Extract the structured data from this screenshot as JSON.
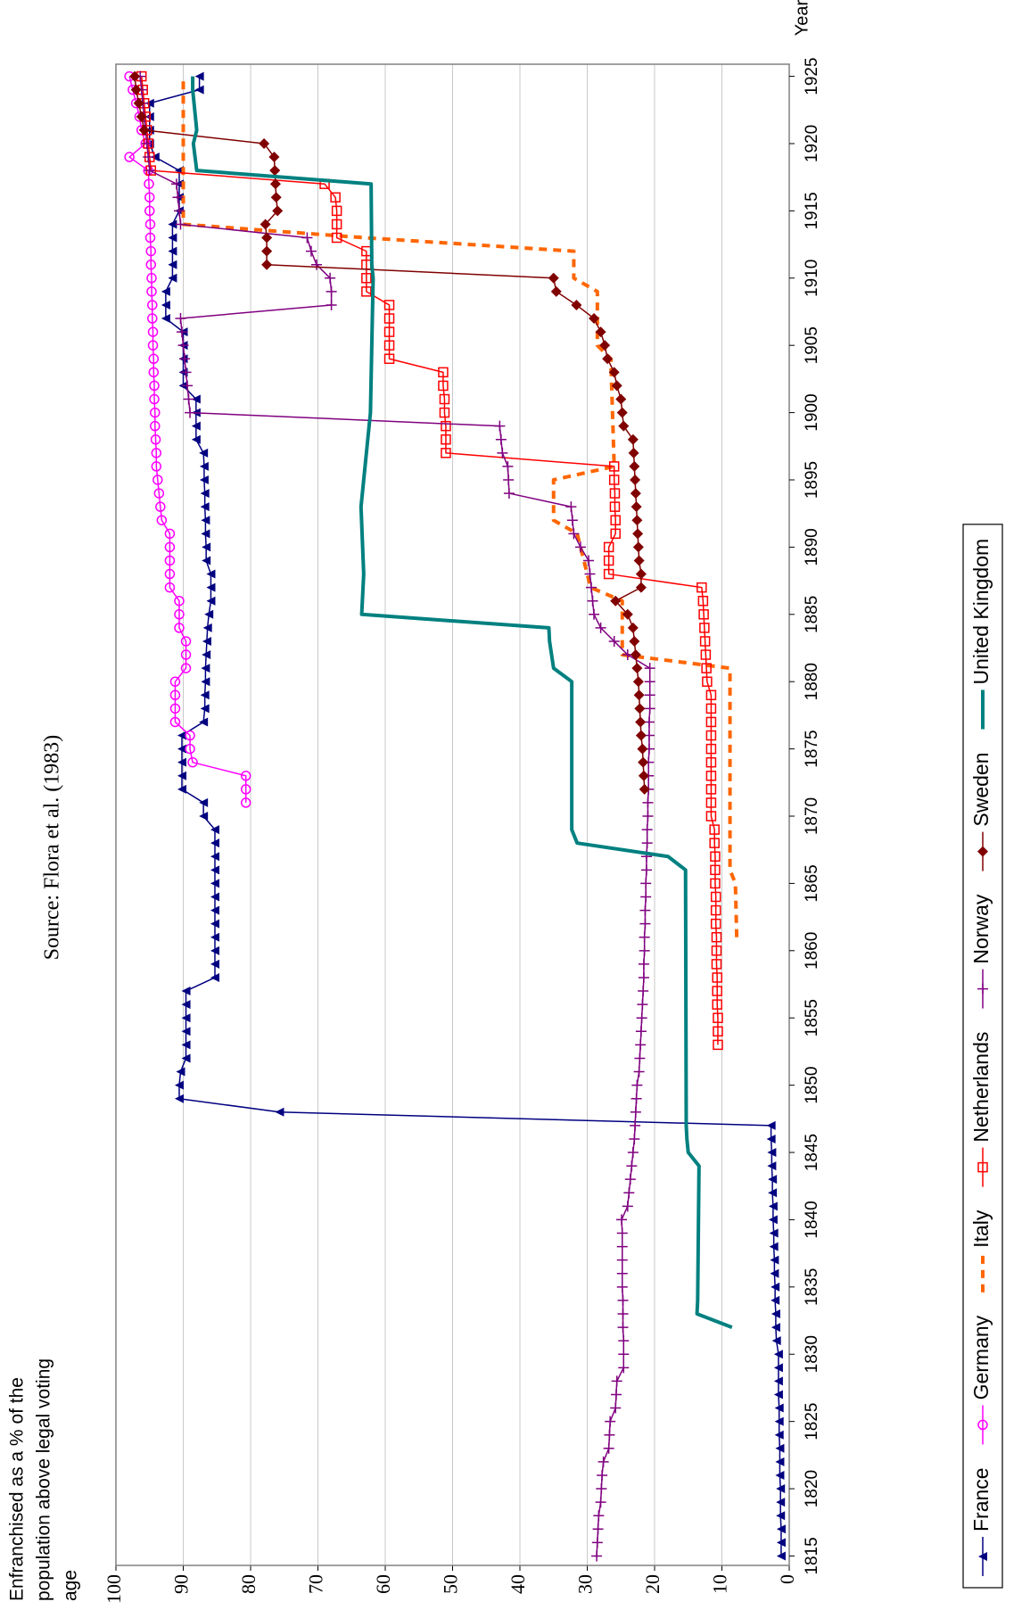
{
  "chart_data": {
    "type": "line",
    "title": "Source:  Flora et al. (1983)",
    "y_label_lines": [
      "Enfranchised  as a % of the",
      "population above legal voting",
      "age"
    ],
    "x_label": "Year",
    "xlim": [
      1814.3,
      1925.9
    ],
    "ylim": [
      0,
      100
    ],
    "xticks": [
      1815,
      1820,
      1825,
      1830,
      1835,
      1840,
      1845,
      1850,
      1855,
      1860,
      1865,
      1870,
      1875,
      1880,
      1885,
      1890,
      1895,
      1900,
      1905,
      1910,
      1915,
      1920,
      1925
    ],
    "yticks": [
      0,
      10,
      20,
      30,
      40,
      50,
      60,
      70,
      80,
      90,
      100
    ],
    "grid": true,
    "series": [
      {
        "name": "France",
        "color": "#000080",
        "marker": "triangle",
        "dashed": false,
        "width": 1.5,
        "x": [
          1815,
          1816,
          1817,
          1818,
          1819,
          1820,
          1821,
          1822,
          1823,
          1824,
          1825,
          1826,
          1827,
          1828,
          1829,
          1830,
          1831,
          1832,
          1833,
          1834,
          1835,
          1836,
          1837,
          1838,
          1839,
          1840,
          1841,
          1842,
          1843,
          1844,
          1845,
          1846,
          1847,
          1848,
          1849,
          1850,
          1851,
          1852,
          1853,
          1854,
          1855,
          1856,
          1857,
          1858,
          1859,
          1860,
          1861,
          1862,
          1863,
          1864,
          1865,
          1866,
          1867,
          1868,
          1869,
          1870,
          1871,
          1872,
          1873,
          1874,
          1875,
          1876,
          1877,
          1878,
          1879,
          1880,
          1881,
          1882,
          1883,
          1884,
          1885,
          1886,
          1887,
          1888,
          1889,
          1890,
          1891,
          1892,
          1893,
          1894,
          1895,
          1896,
          1897,
          1898,
          1899,
          1900,
          1901,
          1902,
          1903,
          1904,
          1905,
          1906,
          1907,
          1908,
          1909,
          1910,
          1911,
          1912,
          1913,
          1914,
          1915,
          1916,
          1917,
          1918,
          1919,
          1920,
          1921,
          1922,
          1923,
          1924,
          1925
        ],
        "values": [
          1.2,
          1.2,
          1.2,
          1.3,
          1.3,
          1.3,
          1.4,
          1.4,
          1.4,
          1.5,
          1.5,
          1.5,
          1.6,
          1.6,
          1.6,
          1.6,
          1.9,
          2.0,
          2.0,
          2.1,
          2.1,
          2.2,
          2.2,
          2.3,
          2.3,
          2.4,
          2.4,
          2.5,
          2.5,
          2.6,
          2.6,
          2.7,
          2.7,
          75.7,
          90.6,
          90.6,
          90.4,
          89.6,
          89.6,
          89.6,
          89.6,
          89.6,
          89.6,
          85.3,
          85.3,
          85.3,
          85.3,
          85.3,
          85.3,
          85.3,
          85.3,
          85.3,
          85.3,
          85.3,
          85.3,
          87.0,
          87.0,
          90.2,
          90.2,
          90.2,
          90.2,
          90.2,
          87.0,
          86.8,
          86.8,
          86.7,
          86.7,
          86.6,
          86.5,
          86.4,
          86.2,
          85.9,
          85.9,
          85.9,
          86.6,
          86.6,
          86.7,
          86.7,
          86.8,
          86.8,
          86.9,
          86.9,
          87.0,
          88.1,
          88.1,
          88.1,
          88.1,
          90.0,
          90.0,
          90.0,
          90.0,
          90.0,
          92.6,
          92.6,
          92.6,
          91.6,
          91.6,
          91.6,
          91.6,
          91.6,
          90.6,
          90.6,
          90.6,
          90.6,
          94.2,
          95.0,
          95.0,
          95.0,
          95.0,
          87.6,
          87.6
        ]
      },
      {
        "name": "Germany",
        "color": "#ff00ff",
        "marker": "circle",
        "dashed": false,
        "width": 1.5,
        "x": [
          1871,
          1872,
          1873,
          1874,
          1875,
          1876,
          1877,
          1878,
          1879,
          1880,
          1881,
          1882,
          1883,
          1884,
          1885,
          1886,
          1887,
          1888,
          1889,
          1890,
          1891,
          1892,
          1893,
          1894,
          1895,
          1896,
          1897,
          1898,
          1899,
          1900,
          1901,
          1902,
          1903,
          1904,
          1905,
          1906,
          1907,
          1908,
          1909,
          1910,
          1911,
          1912,
          1913,
          1914,
          1915,
          1916,
          1917,
          1918,
          1919,
          1920,
          1921,
          1922,
          1923,
          1924,
          1925
        ],
        "values": [
          80.7,
          80.7,
          80.7,
          88.6,
          89.0,
          89.0,
          91.2,
          91.2,
          91.2,
          91.2,
          89.6,
          89.6,
          89.6,
          90.6,
          90.6,
          90.6,
          92.0,
          92.0,
          92.0,
          92.0,
          92.0,
          93.2,
          93.4,
          93.6,
          93.8,
          94.0,
          94.0,
          94.1,
          94.2,
          94.2,
          94.3,
          94.3,
          94.4,
          94.4,
          94.5,
          94.5,
          94.6,
          94.6,
          94.7,
          94.7,
          94.8,
          94.8,
          94.9,
          94.9,
          95.0,
          95.0,
          95.1,
          95.2,
          98.0,
          95.6,
          96.2,
          96.5,
          97.0,
          97.5,
          98.0
        ]
      },
      {
        "name": "Italy",
        "color": "#ff6600",
        "marker": "none",
        "dashed": true,
        "width": 4,
        "x": [
          1861,
          1865,
          1866,
          1881,
          1882,
          1886,
          1887,
          1891,
          1892,
          1895,
          1896,
          1904,
          1905,
          1909,
          1910,
          1912,
          1913,
          1914,
          1925
        ],
        "values": [
          7.8,
          8.0,
          8.8,
          8.8,
          24.8,
          24.8,
          29.5,
          31.5,
          35.0,
          35.0,
          26.0,
          26.5,
          28.5,
          28.5,
          32.0,
          32.0,
          63.0,
          90.0,
          90.0
        ]
      },
      {
        "name": "Netherlands",
        "color": "#ff0000",
        "marker": "square",
        "dashed": false,
        "width": 1.5,
        "x": [
          1853,
          1854,
          1855,
          1856,
          1857,
          1858,
          1859,
          1860,
          1861,
          1862,
          1863,
          1864,
          1865,
          1866,
          1867,
          1868,
          1869,
          1870,
          1871,
          1872,
          1873,
          1874,
          1875,
          1876,
          1877,
          1878,
          1879,
          1880,
          1881,
          1882,
          1883,
          1884,
          1885,
          1886,
          1887,
          1888,
          1889,
          1890,
          1891,
          1892,
          1893,
          1894,
          1895,
          1896,
          1897,
          1898,
          1899,
          1900,
          1901,
          1902,
          1903,
          1904,
          1905,
          1906,
          1907,
          1908,
          1909,
          1910,
          1911,
          1912,
          1913,
          1914,
          1915,
          1916,
          1917,
          1918,
          1919,
          1920,
          1921,
          1922,
          1923,
          1924,
          1925
        ],
        "values": [
          10.6,
          10.6,
          10.6,
          10.7,
          10.7,
          10.7,
          10.8,
          10.8,
          10.8,
          10.9,
          10.9,
          10.9,
          11.0,
          11.0,
          11.0,
          11.1,
          11.1,
          11.6,
          11.6,
          11.6,
          11.6,
          11.6,
          11.6,
          11.6,
          11.6,
          11.6,
          11.6,
          12.2,
          12.3,
          12.4,
          12.5,
          12.6,
          12.7,
          12.8,
          13.0,
          26.8,
          26.8,
          26.8,
          25.8,
          25.8,
          25.9,
          25.9,
          26.0,
          26.0,
          51.0,
          51.0,
          51.0,
          51.2,
          51.2,
          51.4,
          51.4,
          59.4,
          59.4,
          59.4,
          59.4,
          59.4,
          62.8,
          62.8,
          62.8,
          62.8,
          67.2,
          67.2,
          67.2,
          67.4,
          69.0,
          94.8,
          95.0,
          95.2,
          95.4,
          95.6,
          95.8,
          96.0,
          96.2
        ]
      },
      {
        "name": "Norway",
        "color": "#800080",
        "marker": "plus",
        "dashed": false,
        "width": 1.5,
        "x": [
          1815,
          1816,
          1817,
          1818,
          1819,
          1820,
          1821,
          1822,
          1823,
          1824,
          1825,
          1826,
          1827,
          1828,
          1829,
          1830,
          1831,
          1832,
          1833,
          1834,
          1835,
          1836,
          1837,
          1838,
          1839,
          1840,
          1841,
          1842,
          1843,
          1844,
          1845,
          1846,
          1847,
          1848,
          1849,
          1850,
          1851,
          1852,
          1853,
          1854,
          1855,
          1856,
          1857,
          1858,
          1859,
          1860,
          1861,
          1862,
          1863,
          1864,
          1865,
          1866,
          1867,
          1868,
          1869,
          1870,
          1871,
          1872,
          1873,
          1874,
          1875,
          1876,
          1877,
          1878,
          1879,
          1880,
          1881,
          1882,
          1883,
          1884,
          1885,
          1886,
          1887,
          1888,
          1889,
          1890,
          1891,
          1892,
          1893,
          1894,
          1895,
          1896,
          1897,
          1898,
          1899,
          1900,
          1901,
          1902,
          1903,
          1904,
          1905,
          1906,
          1907,
          1908,
          1909,
          1910,
          1911,
          1912,
          1913,
          1914,
          1915,
          1916,
          1917,
          1918,
          1919,
          1920,
          1921,
          1922,
          1923,
          1924,
          1925
        ],
        "values": [
          28.6,
          28.5,
          28.4,
          28.3,
          28.0,
          27.9,
          27.8,
          27.6,
          26.8,
          26.7,
          26.6,
          25.8,
          25.7,
          25.6,
          24.6,
          24.6,
          24.6,
          24.7,
          24.7,
          24.7,
          24.8,
          24.8,
          24.8,
          24.8,
          24.8,
          24.9,
          24.0,
          23.8,
          23.6,
          23.4,
          23.2,
          23.0,
          22.9,
          22.8,
          22.7,
          22.6,
          22.3,
          22.2,
          22.1,
          22.0,
          21.9,
          21.8,
          21.7,
          21.6,
          21.6,
          21.5,
          21.5,
          21.4,
          21.4,
          21.3,
          21.3,
          21.2,
          21.2,
          21.1,
          21.1,
          21.0,
          21.0,
          20.9,
          20.9,
          20.9,
          20.8,
          20.8,
          20.8,
          20.7,
          20.7,
          20.7,
          20.7,
          24.0,
          26.0,
          28.0,
          29.0,
          29.2,
          29.4,
          29.6,
          29.8,
          31.0,
          32.0,
          32.2,
          32.4,
          41.6,
          41.7,
          41.8,
          42.6,
          42.8,
          43.0,
          89.0,
          89.2,
          89.4,
          89.6,
          89.8,
          90.0,
          90.2,
          90.4,
          68.0,
          68.0,
          68.2,
          70.2,
          71.0,
          71.6,
          90.4,
          90.6,
          90.8,
          91.0,
          95.0,
          95.2,
          95.4,
          95.6,
          95.8,
          96.0,
          96.2,
          96.4
        ]
      },
      {
        "name": "Sweden",
        "color": "#800000",
        "marker": "diamond",
        "dashed": false,
        "width": 1.5,
        "x": [
          1872,
          1873,
          1874,
          1875,
          1876,
          1877,
          1878,
          1879,
          1880,
          1881,
          1882,
          1883,
          1884,
          1885,
          1886,
          1887,
          1888,
          1889,
          1890,
          1891,
          1892,
          1893,
          1894,
          1895,
          1896,
          1897,
          1898,
          1899,
          1900,
          1901,
          1902,
          1903,
          1904,
          1905,
          1906,
          1907,
          1908,
          1909,
          1910,
          1911,
          1912,
          1913,
          1914,
          1915,
          1916,
          1917,
          1918,
          1919,
          1920,
          1921,
          1922,
          1923,
          1924,
          1925
        ],
        "values": [
          21.5,
          21.6,
          21.7,
          21.8,
          22.0,
          22.1,
          22.2,
          22.3,
          22.4,
          22.6,
          22.8,
          23.0,
          23.2,
          24.0,
          25.8,
          22.0,
          22.0,
          22.3,
          22.4,
          22.5,
          22.6,
          22.7,
          22.8,
          22.9,
          23.0,
          23.1,
          23.2,
          24.6,
          24.8,
          25.0,
          25.6,
          26.0,
          27.0,
          27.4,
          28.0,
          29.0,
          31.6,
          34.6,
          35.0,
          77.6,
          77.6,
          77.6,
          77.8,
          76.0,
          76.2,
          76.3,
          76.4,
          76.5,
          78.0,
          95.8,
          96.2,
          96.6,
          97.0,
          97.2
        ]
      },
      {
        "name": "United Kingdom",
        "color": "#008080",
        "marker": "none",
        "dashed": false,
        "width": 4,
        "x": [
          1832,
          1833,
          1834,
          1844,
          1845,
          1846,
          1847,
          1866,
          1867,
          1868,
          1869,
          1880,
          1881,
          1883,
          1884,
          1885,
          1888,
          1893,
          1900,
          1910,
          1911,
          1917,
          1918,
          1920,
          1921,
          1924,
          1925
        ],
        "values": [
          8.5,
          13.7,
          13.6,
          13.4,
          15.0,
          15.2,
          15.3,
          15.4,
          18.0,
          31.5,
          32.3,
          32.3,
          35.0,
          35.6,
          35.7,
          63.5,
          63.2,
          63.6,
          62.2,
          61.8,
          62.0,
          62.1,
          88.0,
          88.5,
          88.0,
          88.6,
          88.6
        ]
      }
    ]
  }
}
